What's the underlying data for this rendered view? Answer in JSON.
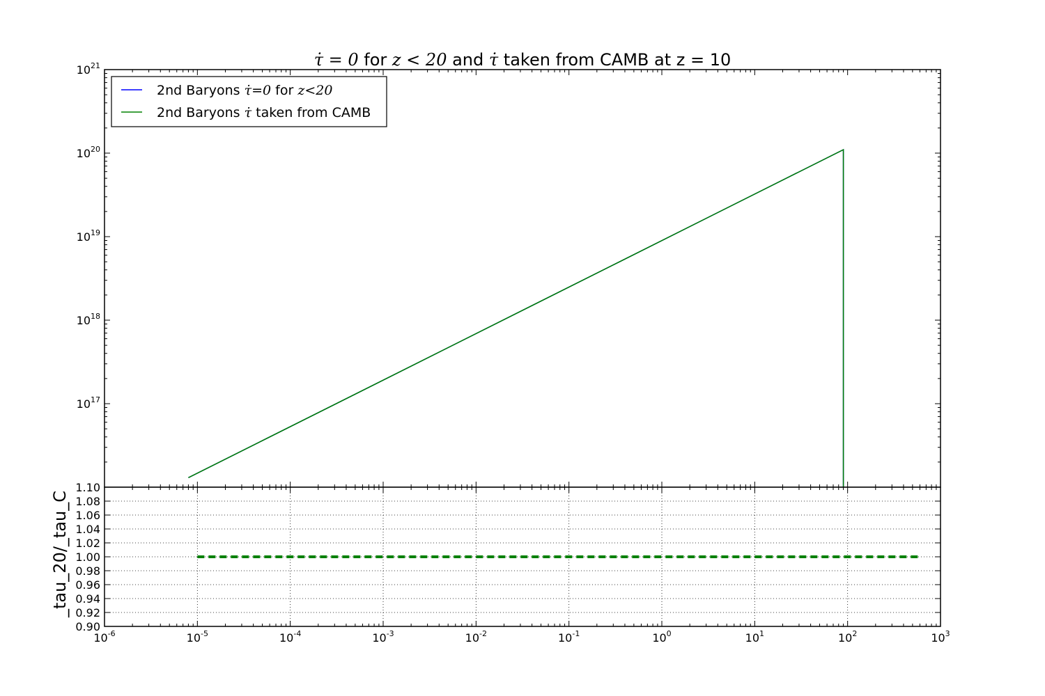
{
  "chart_data": [
    {
      "type": "line",
      "title": {
        "segments": [
          {
            "text": "τ̇ = 0",
            "math": true
          },
          {
            "text": " for ",
            "math": false
          },
          {
            "text": "z < 20",
            "math": true
          },
          {
            "text": " and ",
            "math": false
          },
          {
            "text": "τ̇",
            "math": true
          },
          {
            "text": "  taken from CAMB at z = 10",
            "math": false
          }
        ]
      },
      "x_scale": "log",
      "y_scale": "log",
      "xlim": [
        1e-06,
        1000
      ],
      "ylim": [
        1e+16,
        1e+21
      ],
      "y_tick_labels": [
        {
          "base": "10",
          "exp": "21"
        },
        {
          "base": "10",
          "exp": "20"
        },
        {
          "base": "10",
          "exp": "19"
        },
        {
          "base": "10",
          "exp": "18"
        },
        {
          "base": "10",
          "exp": "17"
        }
      ],
      "legend": {
        "placement": "upper left",
        "entries": [
          {
            "prefix": "2nd Baryons ",
            "math": "τ̇=0",
            "mid": " for ",
            "math2": "z<20",
            "suffix": ""
          },
          {
            "prefix": "2nd Baryons ",
            "math": "τ̇",
            "mid": " taken from CAMB",
            "math2": "",
            "suffix": ""
          }
        ]
      },
      "series": [
        {
          "name": "2nd Baryons τ̇=0 for z<20",
          "color": "#0000ff",
          "style": "solid",
          "x": [
            8e-06,
            90,
            90
          ],
          "y": [
            1.3e+16,
            1.1e+20,
            1e+16
          ]
        },
        {
          "name": "2nd Baryons τ̇ taken from CAMB",
          "color": "#008000",
          "style": "solid",
          "x": [
            8e-06,
            90,
            90
          ],
          "y": [
            1.3e+16,
            1.1e+20,
            1e+16
          ]
        }
      ]
    },
    {
      "type": "line",
      "x_scale": "log",
      "y_scale": "linear",
      "xlim": [
        1e-06,
        1000
      ],
      "ylim": [
        0.9,
        1.1
      ],
      "ylabel": "_tau_20/_tau_C",
      "grid": true,
      "y_ticks": [
        1.1,
        1.08,
        1.06,
        1.04,
        1.02,
        1.0,
        0.98,
        0.96,
        0.94,
        0.92,
        0.9
      ],
      "y_tick_labels": [
        "1.10",
        "1.08",
        "1.06",
        "1.04",
        "1.02",
        "1.00",
        "0.98",
        "0.96",
        "0.94",
        "0.92",
        "0.90"
      ],
      "x_tick_labels": [
        {
          "base": "10",
          "exp": "-6"
        },
        {
          "base": "10",
          "exp": "-5"
        },
        {
          "base": "10",
          "exp": "-4"
        },
        {
          "base": "10",
          "exp": "-3"
        },
        {
          "base": "10",
          "exp": "-2"
        },
        {
          "base": "10",
          "exp": "-1"
        },
        {
          "base": "10",
          "exp": "0"
        },
        {
          "base": "10",
          "exp": "1"
        },
        {
          "base": "10",
          "exp": "2"
        },
        {
          "base": "10",
          "exp": "3"
        }
      ],
      "series": [
        {
          "color": "#008000",
          "style": "dashed",
          "x": [
            1e-05,
            600
          ],
          "y": [
            1.0,
            1.0
          ]
        }
      ]
    }
  ]
}
